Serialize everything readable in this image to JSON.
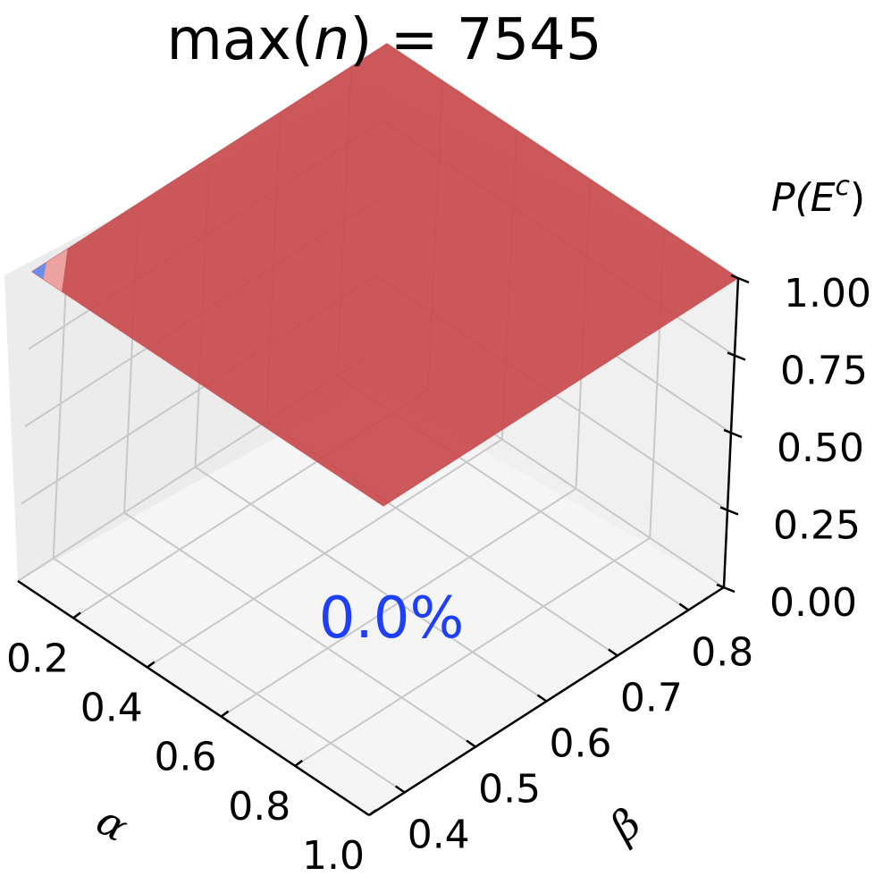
{
  "chart_data": {
    "type": "surface",
    "title_prefix": "max(",
    "title_var": "n",
    "title_suffix": ") = 7545",
    "xlabel": "α",
    "ylabel": "β",
    "zlabel_prefix": "P(E",
    "zlabel_sup": "c",
    "zlabel_suffix": ")",
    "xticks": [
      "0.2",
      "0.4",
      "0.6",
      "0.8",
      "1.0"
    ],
    "yticks": [
      "0.4",
      "0.5",
      "0.6",
      "0.7",
      "0.8"
    ],
    "zticks": [
      "0.00",
      "0.25",
      "0.50",
      "0.75",
      "1.00"
    ],
    "xlim": [
      0.05,
      1.0
    ],
    "ylim": [
      0.35,
      0.85
    ],
    "zlim": [
      0.0,
      1.0
    ],
    "surface_value": 1.0,
    "annotation": "0.0%",
    "colors": {
      "surface": "#c94a4d",
      "surface_edge": "#cc5659",
      "corner_low": "#6a8ff0",
      "annotation": "#1f3fff",
      "pane": "#f2f2f2"
    }
  }
}
